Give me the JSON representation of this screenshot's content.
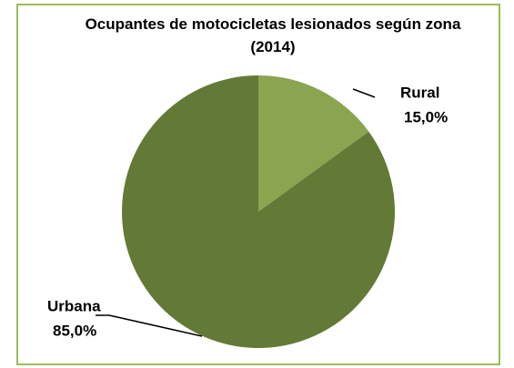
{
  "chart_data": {
    "type": "pie",
    "title": "Ocupantes de motocicletas lesionados según zona (2014)",
    "categories": [
      "Rural",
      "Urbana"
    ],
    "values": [
      15,
      85
    ],
    "value_labels": [
      "15,0%",
      "85,0%"
    ],
    "colors": [
      "#8aa450",
      "#627a35"
    ]
  }
}
